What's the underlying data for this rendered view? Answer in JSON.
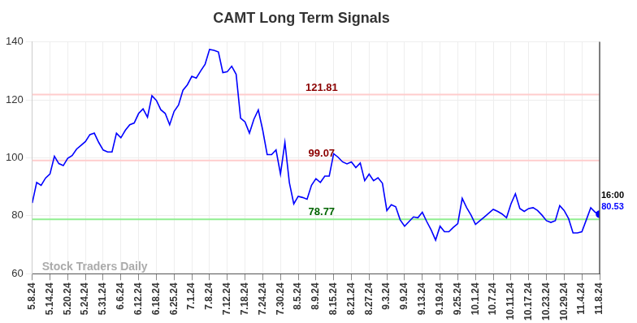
{
  "chart_data": {
    "type": "line",
    "title": "CAMT Long Term Signals",
    "categories": [
      "5.8.24",
      null,
      null,
      null,
      "5.14.24",
      null,
      null,
      null,
      "5.20.24",
      null,
      null,
      null,
      "5.24.24",
      null,
      null,
      null,
      "5.31.24",
      null,
      null,
      null,
      "6.6.24",
      null,
      null,
      null,
      "6.12.24",
      null,
      null,
      null,
      "6.18.24",
      null,
      null,
      null,
      "6.25.24",
      null,
      null,
      null,
      "7.1.24",
      null,
      null,
      null,
      "7.8.24",
      null,
      null,
      null,
      "7.12.24",
      null,
      null,
      null,
      "7.18.24",
      null,
      null,
      null,
      "7.24.24",
      null,
      null,
      null,
      "7.30.24",
      null,
      null,
      null,
      "8.5.24",
      null,
      null,
      null,
      "8.9.24",
      null,
      null,
      null,
      "8.15.24",
      null,
      null,
      null,
      "8.21.24",
      null,
      null,
      null,
      "8.27.24",
      null,
      null,
      null,
      "9.3.24",
      null,
      null,
      null,
      "9.9.24",
      null,
      null,
      null,
      "9.13.24",
      null,
      null,
      null,
      "9.19.24",
      null,
      null,
      null,
      "9.25.24",
      null,
      null,
      null,
      "10.1.24",
      null,
      null,
      null,
      "10.7.24",
      null,
      null,
      null,
      "10.11.24",
      null,
      null,
      null,
      "10.17.24",
      null,
      null,
      null,
      "10.23.24",
      null,
      null,
      null,
      "10.29.24",
      null,
      null,
      null,
      "11.4.24",
      null,
      null,
      null,
      "11.8.24"
    ],
    "values": [
      84.4,
      91.5,
      90.5,
      93,
      94.4,
      100.5,
      98,
      97.3,
      99.8,
      100.8,
      103,
      104.3,
      105.6,
      108,
      108.5,
      105.3,
      102.7,
      102,
      102,
      108.5,
      106.9,
      109.5,
      111.4,
      112,
      115.3,
      116.9,
      114,
      121.4,
      119.8,
      116.6,
      115.3,
      111.4,
      116,
      118.2,
      123.3,
      125.2,
      128.1,
      127.5,
      130,
      132.3,
      137.4,
      137.1,
      136.5,
      129.4,
      129.7,
      131.6,
      128.8,
      113.7,
      112.4,
      108.5,
      113.3,
      116.5,
      109.5,
      101.1,
      101.1,
      102.7,
      94.4,
      105.3,
      91.5,
      84.1,
      86.7,
      86.3,
      85.7,
      90.5,
      92.8,
      91.5,
      93.7,
      93.7,
      101.4,
      100.2,
      98.6,
      97.9,
      98.6,
      96.6,
      98.2,
      92.1,
      94.4,
      92.1,
      93.1,
      91.2,
      81.8,
      83.8,
      83.1,
      78.6,
      76.4,
      78,
      79.6,
      79.3,
      81.2,
      78,
      75.1,
      71.6,
      76.4,
      74.5,
      74.5,
      76,
      77.3,
      86,
      82.8,
      80.2,
      77,
      78.3,
      79.6,
      80.9,
      82.2,
      81.5,
      80.6,
      79.3,
      84.1,
      87.6,
      82.5,
      81.5,
      82.5,
      82.8,
      81.8,
      80.2,
      78.3,
      77.7,
      78.3,
      83.5,
      81.8,
      79,
      74.1,
      74.1,
      74.5,
      78.6,
      82.8,
      81.2,
      80.53
    ],
    "color": "#0000ff",
    "ylim": [
      60,
      140
    ],
    "yticks": [
      60,
      80,
      100,
      120,
      140
    ],
    "grid": true,
    "annotations": [
      {
        "y": 121.81,
        "text": "121.81",
        "color": "#8b0000",
        "line_color": "#ffcccc"
      },
      {
        "y": 99.07,
        "text": "99.07",
        "color": "#8b0000",
        "line_color": "#ffcccc"
      },
      {
        "y": 78.77,
        "text": "78.77",
        "color": "#006400",
        "line_color": "#90ee90"
      }
    ],
    "last_point": {
      "time": "16:00",
      "value": 80.53
    },
    "watermark": "Stock Traders Daily"
  }
}
